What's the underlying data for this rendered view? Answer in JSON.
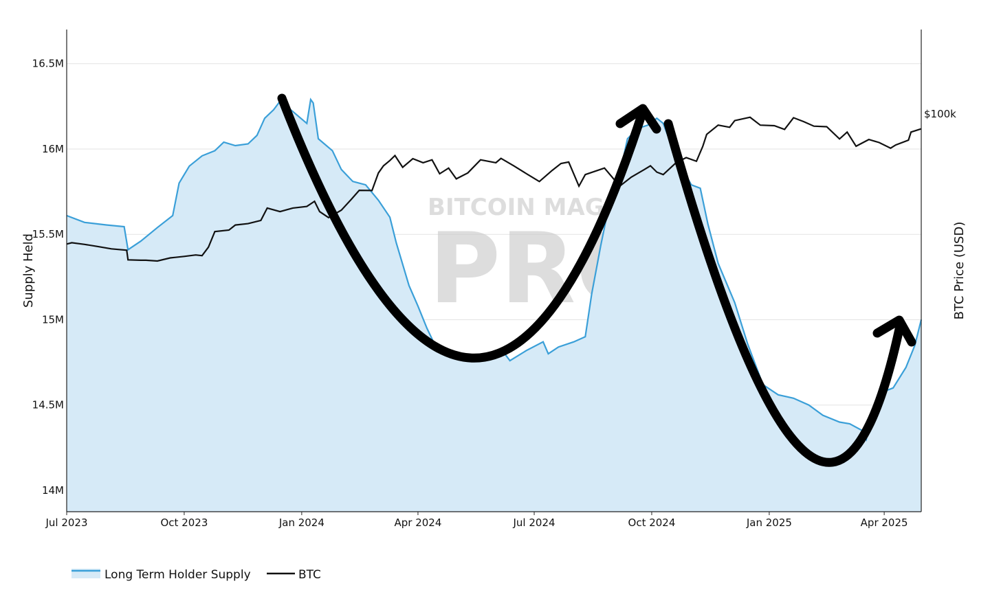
{
  "chart_data": {
    "type": "line",
    "title": "",
    "xlabel": "",
    "ylabel": "Supply Held",
    "y2label": "BTC Price (USD)",
    "x_range": [
      "2023-07-01",
      "2025-04-30"
    ],
    "ylim": [
      13875000,
      16700000
    ],
    "y2_axis_scale": "log",
    "grid": true,
    "legend_position": "bottom-left",
    "x_ticks": [
      {
        "date": "2023-07-01",
        "label": "Jul 2023"
      },
      {
        "date": "2023-10-01",
        "label": "Oct 2023"
      },
      {
        "date": "2024-01-01",
        "label": "Jan 2024"
      },
      {
        "date": "2024-04-01",
        "label": "Apr 2024"
      },
      {
        "date": "2024-07-01",
        "label": "Jul 2024"
      },
      {
        "date": "2024-10-01",
        "label": "Oct 2024"
      },
      {
        "date": "2025-01-01",
        "label": "Jan 2025"
      },
      {
        "date": "2025-04-01",
        "label": "Apr 2025"
      }
    ],
    "y_ticks": [
      {
        "value": 14000000,
        "label": "14M"
      },
      {
        "value": 14500000,
        "label": "14.5M"
      },
      {
        "value": 15000000,
        "label": "15M"
      },
      {
        "value": 15500000,
        "label": "15.5M"
      },
      {
        "value": 16000000,
        "label": "16M"
      },
      {
        "value": 16500000,
        "label": "16.5M"
      }
    ],
    "y2_ticks": [
      {
        "value": 100000,
        "label": "$100k"
      }
    ],
    "colors": {
      "lths_line": "#3a9fd8",
      "lths_fill": "#d6eaf7",
      "btc_line": "#111111",
      "grid": "#e3e3e3",
      "arrow": "#000000",
      "watermark": "#c8c8c8"
    },
    "series": [
      {
        "name": "Long Term Holder Supply",
        "axis": "left",
        "points": [
          [
            "2023-07-01",
            15610000
          ],
          [
            "2023-07-15",
            15570000
          ],
          [
            "2023-08-01",
            15555000
          ],
          [
            "2023-08-15",
            15545000
          ],
          [
            "2023-08-18",
            15410000
          ],
          [
            "2023-08-28",
            15460000
          ],
          [
            "2023-09-10",
            15540000
          ],
          [
            "2023-09-22",
            15610000
          ],
          [
            "2023-09-27",
            15800000
          ],
          [
            "2023-10-05",
            15900000
          ],
          [
            "2023-10-15",
            15960000
          ],
          [
            "2023-10-25",
            15990000
          ],
          [
            "2023-11-01",
            16040000
          ],
          [
            "2023-11-10",
            16020000
          ],
          [
            "2023-11-20",
            16030000
          ],
          [
            "2023-11-27",
            16080000
          ],
          [
            "2023-12-03",
            16180000
          ],
          [
            "2023-12-10",
            16230000
          ],
          [
            "2023-12-15",
            16280000
          ],
          [
            "2023-12-25",
            16220000
          ],
          [
            "2024-01-05",
            16150000
          ],
          [
            "2024-01-08",
            16290000
          ],
          [
            "2024-01-10",
            16270000
          ],
          [
            "2024-01-14",
            16060000
          ],
          [
            "2024-01-25",
            15990000
          ],
          [
            "2024-02-01",
            15880000
          ],
          [
            "2024-02-10",
            15810000
          ],
          [
            "2024-02-20",
            15790000
          ],
          [
            "2024-03-01",
            15700000
          ],
          [
            "2024-03-10",
            15600000
          ],
          [
            "2024-03-15",
            15450000
          ],
          [
            "2024-03-25",
            15200000
          ],
          [
            "2024-04-01",
            15080000
          ],
          [
            "2024-04-08",
            14950000
          ],
          [
            "2024-04-15",
            14840000
          ],
          [
            "2024-04-25",
            14810000
          ],
          [
            "2024-05-05",
            14790000
          ],
          [
            "2024-05-15",
            14760000
          ],
          [
            "2024-05-25",
            14780000
          ],
          [
            "2024-06-05",
            14830000
          ],
          [
            "2024-06-12",
            14760000
          ],
          [
            "2024-06-25",
            14820000
          ],
          [
            "2024-07-08",
            14870000
          ],
          [
            "2024-07-12",
            14800000
          ],
          [
            "2024-07-20",
            14840000
          ],
          [
            "2024-08-01",
            14870000
          ],
          [
            "2024-08-10",
            14900000
          ],
          [
            "2024-08-15",
            15150000
          ],
          [
            "2024-08-22",
            15430000
          ],
          [
            "2024-08-28",
            15650000
          ],
          [
            "2024-09-05",
            15820000
          ],
          [
            "2024-09-12",
            16060000
          ],
          [
            "2024-09-20",
            16120000
          ],
          [
            "2024-09-28",
            16140000
          ],
          [
            "2024-10-05",
            16180000
          ],
          [
            "2024-10-10",
            16150000
          ],
          [
            "2024-10-15",
            16050000
          ],
          [
            "2024-10-22",
            15920000
          ],
          [
            "2024-11-01",
            15790000
          ],
          [
            "2024-11-08",
            15770000
          ],
          [
            "2024-11-14",
            15560000
          ],
          [
            "2024-11-22",
            15330000
          ],
          [
            "2024-12-05",
            15100000
          ],
          [
            "2024-12-15",
            14860000
          ],
          [
            "2024-12-27",
            14620000
          ],
          [
            "2025-01-08",
            14560000
          ],
          [
            "2025-01-20",
            14540000
          ],
          [
            "2025-02-01",
            14500000
          ],
          [
            "2025-02-12",
            14440000
          ],
          [
            "2025-02-25",
            14400000
          ],
          [
            "2025-03-05",
            14390000
          ],
          [
            "2025-03-15",
            14350000
          ],
          [
            "2025-03-18",
            14300000
          ],
          [
            "2025-03-22",
            14450000
          ],
          [
            "2025-04-01",
            14580000
          ],
          [
            "2025-04-08",
            14600000
          ],
          [
            "2025-04-18",
            14720000
          ],
          [
            "2025-04-25",
            14850000
          ],
          [
            "2025-04-30",
            15000000
          ]
        ]
      },
      {
        "name": "BTC",
        "axis": "right",
        "points": [
          [
            "2023-07-01",
            30500
          ],
          [
            "2023-07-05",
            30900
          ],
          [
            "2023-07-15",
            30400
          ],
          [
            "2023-07-25",
            29800
          ],
          [
            "2023-08-05",
            29100
          ],
          [
            "2023-08-17",
            28700
          ],
          [
            "2023-08-18",
            26100
          ],
          [
            "2023-08-28",
            26000
          ],
          [
            "2023-09-01",
            26000
          ],
          [
            "2023-09-10",
            25800
          ],
          [
            "2023-09-20",
            26600
          ],
          [
            "2023-10-01",
            27000
          ],
          [
            "2023-10-10",
            27400
          ],
          [
            "2023-10-15",
            27200
          ],
          [
            "2023-10-20",
            29600
          ],
          [
            "2023-10-25",
            34500
          ],
          [
            "2023-11-05",
            35000
          ],
          [
            "2023-11-10",
            36800
          ],
          [
            "2023-11-20",
            37300
          ],
          [
            "2023-11-30",
            38500
          ],
          [
            "2023-12-05",
            43500
          ],
          [
            "2023-12-15",
            42000
          ],
          [
            "2023-12-25",
            43500
          ],
          [
            "2024-01-05",
            44200
          ],
          [
            "2024-01-11",
            46500
          ],
          [
            "2024-01-15",
            42000
          ],
          [
            "2024-01-22",
            39600
          ],
          [
            "2024-02-01",
            42600
          ],
          [
            "2024-02-09",
            47500
          ],
          [
            "2024-02-15",
            51800
          ],
          [
            "2024-02-25",
            51700
          ],
          [
            "2024-03-01",
            61500
          ],
          [
            "2024-03-05",
            66000
          ],
          [
            "2024-03-10",
            69500
          ],
          [
            "2024-03-14",
            73000
          ],
          [
            "2024-03-20",
            65000
          ],
          [
            "2024-03-28",
            70800
          ],
          [
            "2024-04-05",
            68000
          ],
          [
            "2024-04-12",
            70000
          ],
          [
            "2024-04-18",
            61000
          ],
          [
            "2024-04-25",
            64500
          ],
          [
            "2024-05-01",
            58000
          ],
          [
            "2024-05-10",
            61500
          ],
          [
            "2024-05-20",
            70000
          ],
          [
            "2024-06-01",
            68000
          ],
          [
            "2024-06-05",
            71000
          ],
          [
            "2024-06-15",
            66000
          ],
          [
            "2024-06-25",
            61000
          ],
          [
            "2024-07-05",
            56500
          ],
          [
            "2024-07-15",
            63000
          ],
          [
            "2024-07-22",
            67500
          ],
          [
            "2024-07-28",
            68500
          ],
          [
            "2024-08-05",
            54000
          ],
          [
            "2024-08-10",
            60500
          ],
          [
            "2024-08-25",
            64500
          ],
          [
            "2024-09-06",
            54000
          ],
          [
            "2024-09-15",
            59000
          ],
          [
            "2024-09-25",
            63500
          ],
          [
            "2024-09-30",
            66000
          ],
          [
            "2024-10-05",
            62000
          ],
          [
            "2024-10-10",
            60500
          ],
          [
            "2024-10-20",
            68000
          ],
          [
            "2024-10-28",
            71500
          ],
          [
            "2024-11-05",
            69000
          ],
          [
            "2024-11-10",
            80000
          ],
          [
            "2024-11-13",
            90000
          ],
          [
            "2024-11-22",
            98500
          ],
          [
            "2024-12-01",
            96500
          ],
          [
            "2024-12-05",
            103000
          ],
          [
            "2024-12-17",
            106500
          ],
          [
            "2024-12-25",
            98500
          ],
          [
            "2025-01-05",
            98000
          ],
          [
            "2025-01-13",
            94500
          ],
          [
            "2025-01-20",
            106000
          ],
          [
            "2025-01-28",
            102000
          ],
          [
            "2025-02-05",
            97500
          ],
          [
            "2025-02-15",
            97000
          ],
          [
            "2025-02-25",
            86000
          ],
          [
            "2025-03-03",
            92000
          ],
          [
            "2025-03-10",
            80000
          ],
          [
            "2025-03-20",
            85500
          ],
          [
            "2025-03-28",
            83000
          ],
          [
            "2025-04-06",
            78500
          ],
          [
            "2025-04-10",
            81000
          ],
          [
            "2025-04-20",
            85000
          ],
          [
            "2025-04-22",
            92000
          ],
          [
            "2025-04-30",
            95000
          ]
        ]
      }
    ]
  },
  "watermark": {
    "top": "BITCOIN MAGAZINE",
    "main": "PRO",
    "reg": "®"
  },
  "legend": {
    "lths_label": "Long Term Holder Supply",
    "btc_label": "BTC"
  }
}
